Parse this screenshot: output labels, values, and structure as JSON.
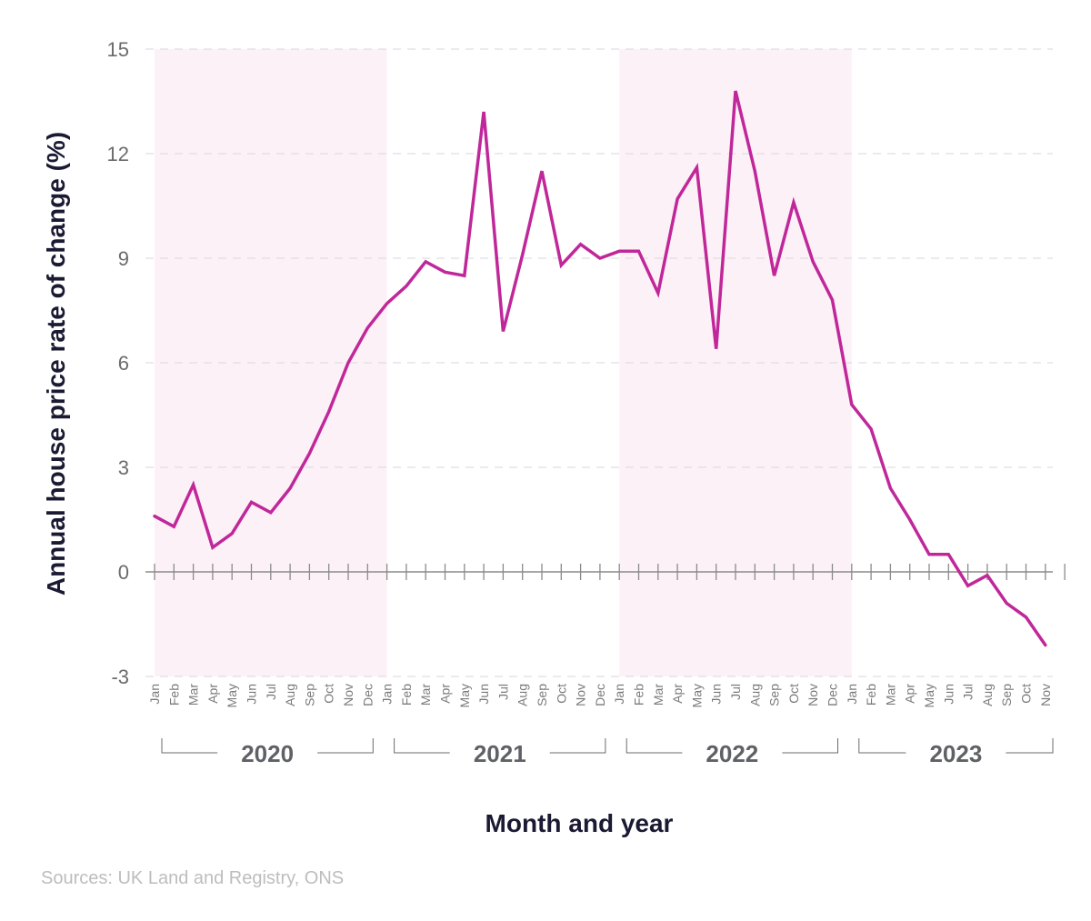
{
  "chart_data": {
    "type": "line",
    "title": "",
    "xlabel": "Month and year",
    "ylabel": "Annual house price rate of change (%)",
    "ylim": [
      -3,
      15
    ],
    "yticks": [
      15,
      12,
      9,
      6,
      3,
      0,
      -3
    ],
    "grid": true,
    "source": "Sources: UK Land and Registry, ONS",
    "line_color": "#c0289a",
    "band_color": "#fdf1f8",
    "shaded_years": [
      "2020",
      "2022"
    ],
    "years": [
      {
        "label": "2020",
        "months": [
          "Jan",
          "Feb",
          "Mar",
          "Apr",
          "May",
          "Jun",
          "Jul",
          "Aug",
          "Sep",
          "Oct",
          "Nov",
          "Dec"
        ]
      },
      {
        "label": "2021",
        "months": [
          "Jan",
          "Feb",
          "Mar",
          "Apr",
          "May",
          "Jun",
          "Jul",
          "Aug",
          "Sep",
          "Oct",
          "Nov",
          "Dec"
        ]
      },
      {
        "label": "2022",
        "months": [
          "Jan",
          "Feb",
          "Mar",
          "Apr",
          "May",
          "Jun",
          "Jul",
          "Aug",
          "Sep",
          "Oct",
          "Nov",
          "Dec"
        ]
      },
      {
        "label": "2023",
        "months": [
          "Jan",
          "Feb",
          "Mar",
          "Apr",
          "May",
          "Jun",
          "Jul",
          "Aug",
          "Sep",
          "Oct",
          "Nov"
        ]
      }
    ],
    "series": [
      {
        "name": "Annual house price rate of change (%)",
        "values": [
          1.6,
          1.3,
          2.5,
          0.7,
          1.1,
          2.0,
          1.7,
          2.4,
          3.4,
          4.6,
          6.0,
          7.0,
          7.7,
          8.2,
          8.9,
          8.6,
          8.5,
          13.2,
          6.9,
          9.1,
          11.5,
          8.8,
          9.4,
          9.0,
          9.2,
          9.2,
          8.0,
          10.7,
          11.6,
          6.4,
          13.8,
          11.5,
          8.5,
          10.6,
          8.9,
          7.8,
          4.8,
          4.1,
          2.4,
          1.5,
          0.5,
          0.5,
          -0.4,
          -0.1,
          -0.9,
          -1.3,
          -2.1
        ]
      }
    ]
  }
}
